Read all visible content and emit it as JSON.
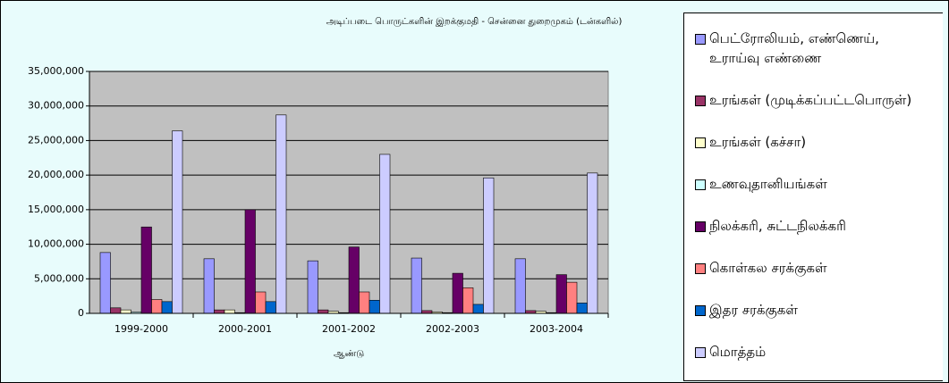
{
  "chart_data": {
    "type": "bar",
    "title": "அடிப்படை பொருட்களின்  இறக்குமதி - சென்னை துறைமுகம் (டன்களில்)",
    "x_label": "ஆண்டு",
    "categories": [
      "1999-2000",
      "2000-2001",
      "2001-2002",
      "2002-2003",
      "2003-2004"
    ],
    "series": [
      {
        "name": "பெட்ரோலியம், எண்ணெய், உராய்வு எண்ணை",
        "color": "#9999ff",
        "values": [
          8800000,
          7900000,
          7600000,
          8000000,
          7900000
        ]
      },
      {
        "name": "உரங்கள் (முடிக்கப்பட்டபொருள்)",
        "color": "#993366",
        "values": [
          800000,
          500000,
          500000,
          400000,
          400000
        ]
      },
      {
        "name": "உரங்கள் (கச்சா)",
        "color": "#ffffcc",
        "values": [
          500000,
          500000,
          300000,
          200000,
          300000
        ]
      },
      {
        "name": "உணவுதானியங்கள்",
        "color": "#ccffff",
        "values": [
          200000,
          100000,
          100000,
          100000,
          100000
        ]
      },
      {
        "name": "நிலக்கரி, சுட்டநிலக்கரி",
        "color": "#660066",
        "values": [
          12500000,
          15000000,
          9600000,
          5800000,
          5600000
        ]
      },
      {
        "name": "கொள்கல சரக்குகள்",
        "color": "#ff8080",
        "values": [
          2000000,
          3100000,
          3100000,
          3700000,
          4500000
        ]
      },
      {
        "name": "இதர சரக்குகள்",
        "color": "#0066cc",
        "values": [
          1700000,
          1700000,
          1900000,
          1300000,
          1500000
        ]
      },
      {
        "name": "மொத்தம்",
        "color": "#ccccff",
        "values": [
          26400000,
          28700000,
          23000000,
          19600000,
          20300000
        ]
      }
    ],
    "ylim": [
      0,
      35000000
    ],
    "yticks": [
      0,
      {
        "value": 5000000,
        "label": "5,000,000"
      },
      {
        "value": 10000000,
        "label": "10,000,000"
      },
      {
        "value": 15000000,
        "label": "15,000,000"
      },
      {
        "value": 20000000,
        "label": "20,000,000"
      },
      {
        "value": 25000000,
        "label": "25,000,000"
      },
      {
        "value": 30000000,
        "label": "30,000,000"
      },
      {
        "value": 35000000,
        "label": "35,000,000"
      }
    ],
    "grid": true,
    "plot_color": "#c0c0c0"
  }
}
